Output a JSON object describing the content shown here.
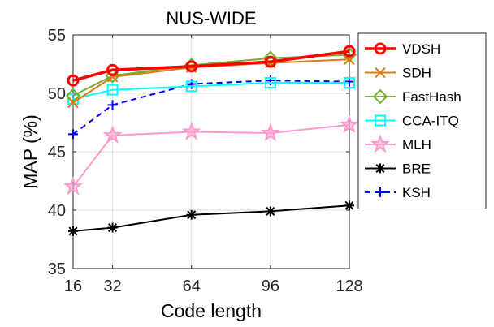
{
  "chart_data": {
    "type": "line",
    "title": "NUS-WIDE",
    "xlabel": "Code length",
    "ylabel": "MAP (%)",
    "x": [
      16,
      32,
      64,
      96,
      128
    ],
    "xticks": [
      "16",
      "32",
      "64",
      "96",
      "128"
    ],
    "xlim": [
      16,
      128
    ],
    "ylim": [
      35,
      55
    ],
    "yticks": [
      "35",
      "40",
      "45",
      "50",
      "55"
    ],
    "grid": true,
    "legend_position": "outside-right",
    "series": [
      {
        "name": "VDSH",
        "values": [
          51.1,
          52.0,
          52.3,
          52.7,
          53.6
        ],
        "color": "#ff0000",
        "marker": "circle",
        "dash": "solid",
        "width": 3.5
      },
      {
        "name": "SDH",
        "values": [
          49.2,
          51.4,
          52.2,
          52.6,
          52.9
        ],
        "color": "#d97c12",
        "marker": "x",
        "dash": "solid",
        "width": 2
      },
      {
        "name": "FastHash",
        "values": [
          49.8,
          51.5,
          52.4,
          53.0,
          53.3
        ],
        "color": "#77ac30",
        "marker": "diamond",
        "dash": "solid",
        "width": 2
      },
      {
        "name": "CCA-ITQ",
        "values": [
          49.5,
          50.3,
          50.6,
          50.9,
          50.9
        ],
        "color": "#00ffff",
        "marker": "square",
        "dash": "solid",
        "width": 2
      },
      {
        "name": "MLH",
        "values": [
          42.0,
          46.4,
          46.7,
          46.6,
          47.3
        ],
        "color": "#ff99cc",
        "marker": "star",
        "dash": "solid",
        "width": 2
      },
      {
        "name": "BRE",
        "values": [
          38.2,
          38.5,
          39.6,
          39.9,
          40.4
        ],
        "color": "#000000",
        "marker": "asterisk",
        "dash": "solid",
        "width": 2
      },
      {
        "name": "KSH",
        "values": [
          46.5,
          49.0,
          50.8,
          51.1,
          51.0
        ],
        "color": "#0000ff",
        "marker": "plus",
        "dash": "dashed",
        "width": 2
      }
    ]
  }
}
